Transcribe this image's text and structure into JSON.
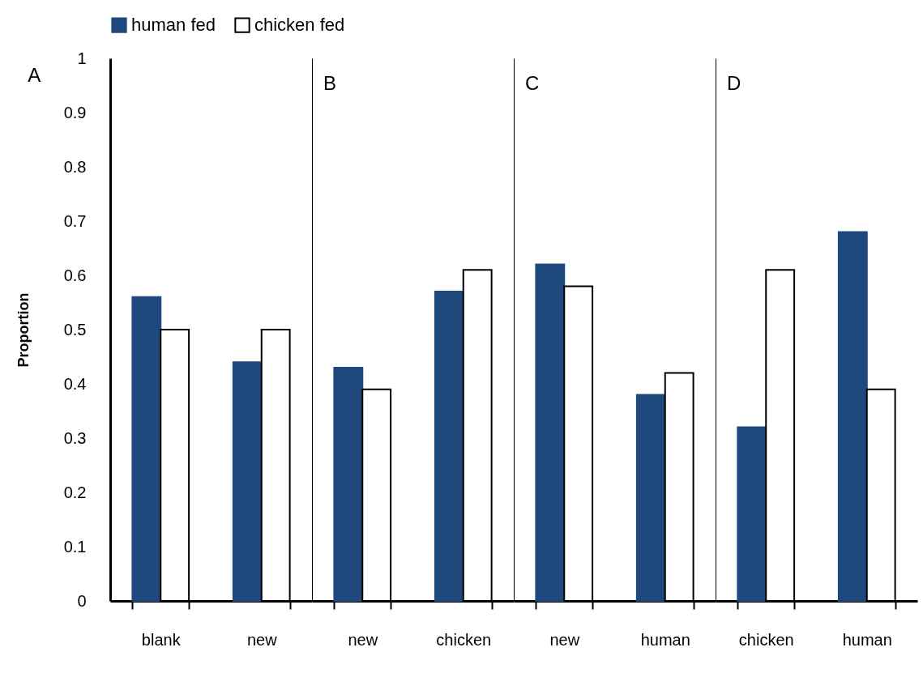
{
  "chart_data": [
    {
      "type": "bar",
      "title": "A",
      "categories": [
        "blank",
        "new"
      ],
      "ylabel": "Proportion",
      "ylim": [
        0,
        1
      ],
      "yticks": [
        0,
        0.1,
        0.2,
        0.3,
        0.4,
        0.5,
        0.6,
        0.7,
        0.8,
        0.9,
        1
      ],
      "legend": "top",
      "series": [
        {
          "name": "human fed",
          "color": "#1f497d",
          "values": [
            0.56,
            0.44
          ]
        },
        {
          "name": "chicken fed",
          "color": "#ffffff",
          "values": [
            0.5,
            0.5
          ]
        }
      ]
    },
    {
      "type": "bar",
      "title": "B",
      "categories": [
        "new",
        "chicken"
      ],
      "ylim": [
        0,
        1
      ],
      "yticks": [
        0,
        0.1,
        0.2,
        0.3,
        0.4,
        0.5,
        0.6,
        0.7,
        0.8,
        0.9,
        1
      ],
      "tick_labels": "x",
      "series": [
        {
          "name": "human fed",
          "color": "#1f497d",
          "values": [
            0.43,
            0.57
          ]
        },
        {
          "name": "chicken fed",
          "color": "#ffffff",
          "values": [
            0.39,
            0.61
          ]
        }
      ]
    },
    {
      "type": "bar",
      "title": "C",
      "categories": [
        "new",
        "human"
      ],
      "ylim": [
        0,
        1
      ],
      "yticks": [
        0,
        0.1,
        0.2,
        0.3,
        0.4,
        0.5,
        0.6,
        0.7,
        0.8,
        0.9,
        1
      ],
      "tick_labels": "x",
      "series": [
        {
          "name": "human fed",
          "color": "#1f497d",
          "values": [
            0.62,
            0.38
          ]
        },
        {
          "name": "chicken fed",
          "color": "#ffffff",
          "values": [
            0.58,
            0.42
          ]
        }
      ]
    },
    {
      "type": "bar",
      "title": "D",
      "categories": [
        "chicken",
        "human"
      ],
      "ylim": [
        0,
        1
      ],
      "yticks": [
        0,
        0.1,
        0.2,
        0.3,
        0.4,
        0.5,
        0.6,
        0.7,
        0.8,
        0.9,
        1
      ],
      "tick_labels": "x",
      "series": [
        {
          "name": "human fed",
          "color": "#1f497d",
          "values": [
            0.32,
            0.68
          ]
        },
        {
          "name": "chicken fed",
          "color": "#ffffff",
          "values": [
            0.61,
            0.39
          ]
        }
      ]
    }
  ]
}
